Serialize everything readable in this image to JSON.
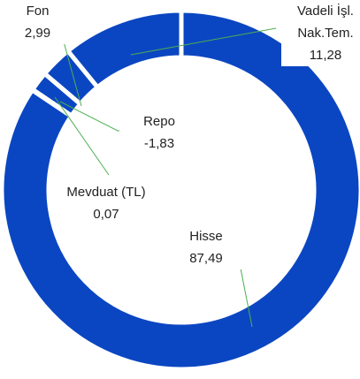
{
  "chart_data": {
    "type": "donut",
    "categories": [
      "Hisse",
      "Mevduat (TL)",
      "Repo",
      "Fon",
      "Vadeli İşl. Nak.Tem."
    ],
    "values": [
      87.49,
      0.07,
      -1.83,
      2.99,
      11.28
    ],
    "value_labels": [
      "87,49",
      "0,07",
      "-1,83",
      "2,99",
      "11,28"
    ],
    "color": "#0b46c2"
  }
}
